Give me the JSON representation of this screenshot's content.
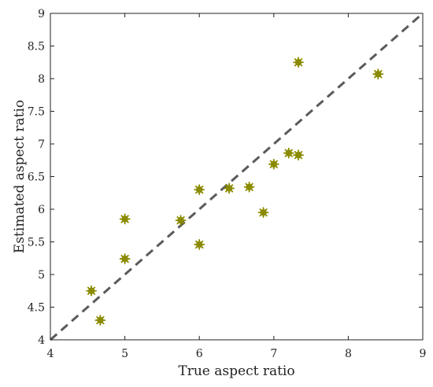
{
  "chart_data": {
    "type": "scatter",
    "title": "",
    "xlabel": "True aspect ratio",
    "ylabel": "Estimated aspect ratio",
    "xlim": [
      4,
      9
    ],
    "ylim": [
      4,
      9
    ],
    "xticks": [
      4,
      5,
      6,
      7,
      8,
      9
    ],
    "yticks": [
      4,
      4.5,
      5,
      5.5,
      6,
      6.5,
      7,
      7.5,
      8,
      8.5,
      9
    ],
    "grid": false,
    "reference_line": {
      "style": "dashed",
      "from": [
        4,
        4
      ],
      "to": [
        9,
        9
      ],
      "color": "#5a5a5a"
    },
    "marker_color": "#8b8b00",
    "series": [
      {
        "points": [
          {
            "x": 4.55,
            "y": 4.75
          },
          {
            "x": 4.67,
            "y": 4.3
          },
          {
            "x": 5.0,
            "y": 5.85
          },
          {
            "x": 5.0,
            "y": 5.24
          },
          {
            "x": 5.75,
            "y": 5.83
          },
          {
            "x": 6.0,
            "y": 6.3
          },
          {
            "x": 6.0,
            "y": 5.46
          },
          {
            "x": 6.4,
            "y": 6.32
          },
          {
            "x": 6.67,
            "y": 6.34
          },
          {
            "x": 6.86,
            "y": 5.95
          },
          {
            "x": 7.0,
            "y": 6.69
          },
          {
            "x": 7.2,
            "y": 6.86
          },
          {
            "x": 7.33,
            "y": 6.83
          },
          {
            "x": 7.33,
            "y": 8.25
          },
          {
            "x": 8.4,
            "y": 8.07
          }
        ]
      }
    ]
  }
}
